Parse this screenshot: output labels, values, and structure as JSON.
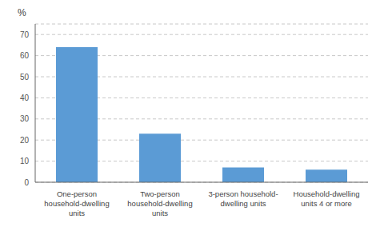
{
  "chart_data": {
    "type": "bar",
    "categories": [
      "One-person\nhousehold-dwelling\nunits",
      "Two-person\nhousehold-dwelling\nunits",
      "3-person household-\ndwelling units",
      "Household-dwelling\nunits 4 or more"
    ],
    "values": [
      64,
      23,
      7,
      6
    ],
    "color": "#5B9BD5",
    "ylabel": "%",
    "ylim": [
      0,
      75
    ],
    "yticks": [
      0,
      10,
      20,
      30,
      40,
      50,
      60,
      70
    ],
    "grid": true
  }
}
